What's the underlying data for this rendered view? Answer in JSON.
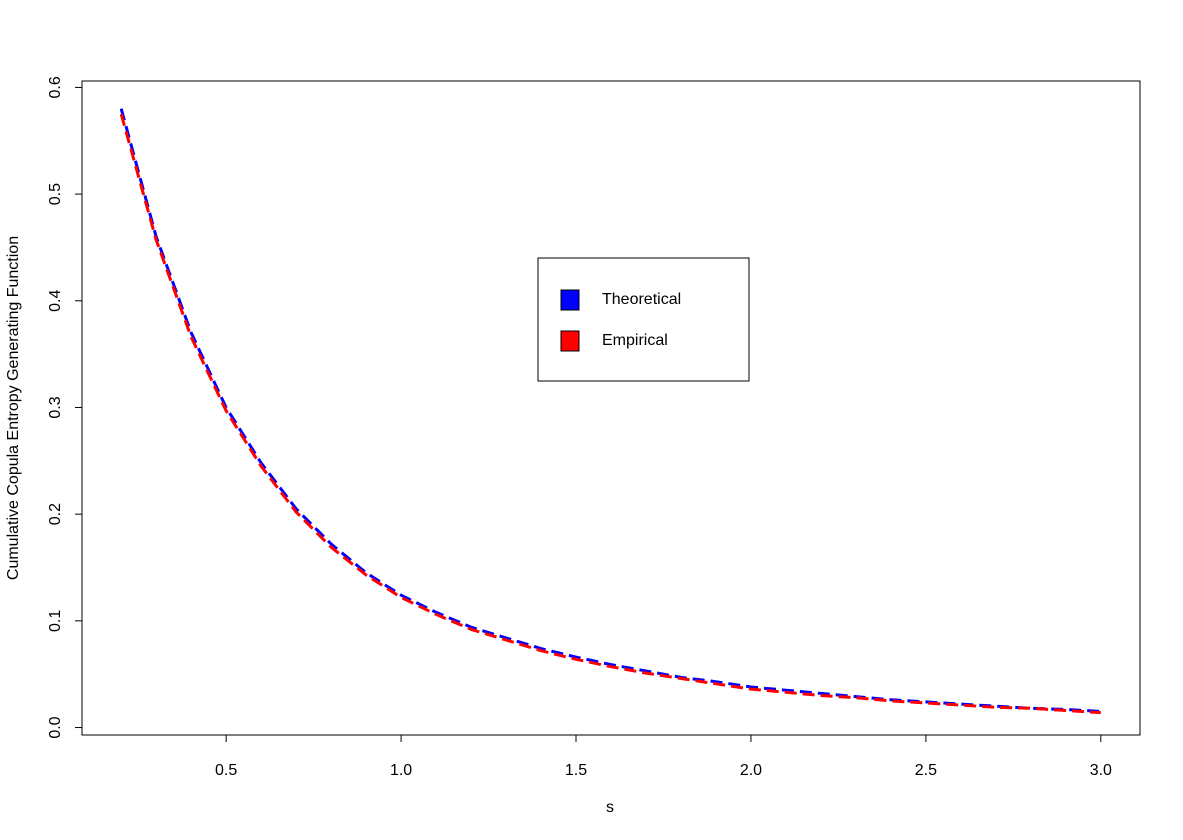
{
  "chart_data": {
    "type": "line",
    "xlabel": "s",
    "ylabel": "Cumulative Copula Entropy Generating Function",
    "x": [
      0.2,
      0.3,
      0.4,
      0.5,
      0.6,
      0.7,
      0.8,
      0.9,
      1.0,
      1.1,
      1.2,
      1.3,
      1.4,
      1.5,
      1.6,
      1.7,
      1.8,
      1.9,
      2.0,
      2.1,
      2.2,
      2.3,
      2.4,
      2.5,
      2.6,
      2.7,
      2.8,
      2.9,
      3.0
    ],
    "series": [
      {
        "name": "Theoretical",
        "color": "#0000ff",
        "values": [
          0.58,
          0.46,
          0.37,
          0.3,
          0.248,
          0.205,
          0.172,
          0.145,
          0.124,
          0.108,
          0.094,
          0.084,
          0.074,
          0.066,
          0.059,
          0.053,
          0.047,
          0.043,
          0.038,
          0.035,
          0.032,
          0.029,
          0.026,
          0.024,
          0.022,
          0.02,
          0.018,
          0.017,
          0.015
        ]
      },
      {
        "name": "Empirical",
        "color": "#ff0000",
        "values": [
          0.575,
          0.457,
          0.366,
          0.297,
          0.245,
          0.202,
          0.169,
          0.143,
          0.122,
          0.106,
          0.092,
          0.082,
          0.072,
          0.064,
          0.057,
          0.051,
          0.046,
          0.041,
          0.036,
          0.033,
          0.03,
          0.028,
          0.025,
          0.023,
          0.021,
          0.019,
          0.018,
          0.016,
          0.014
        ]
      }
    ],
    "xlim": [
      0.088,
      3.112
    ],
    "ylim": [
      -0.007,
      0.606
    ],
    "xticks": [
      0.5,
      {
        "value": 1,
        "label": "1.0"
      },
      1.5,
      {
        "value": 2,
        "label": "2.0"
      },
      2.5,
      {
        "value": 3,
        "label": "3.0"
      }
    ],
    "yticks": [
      {
        "value": 0,
        "label": "0.0"
      },
      0.1,
      0.2,
      0.3,
      0.4,
      0.5,
      0.6
    ]
  }
}
